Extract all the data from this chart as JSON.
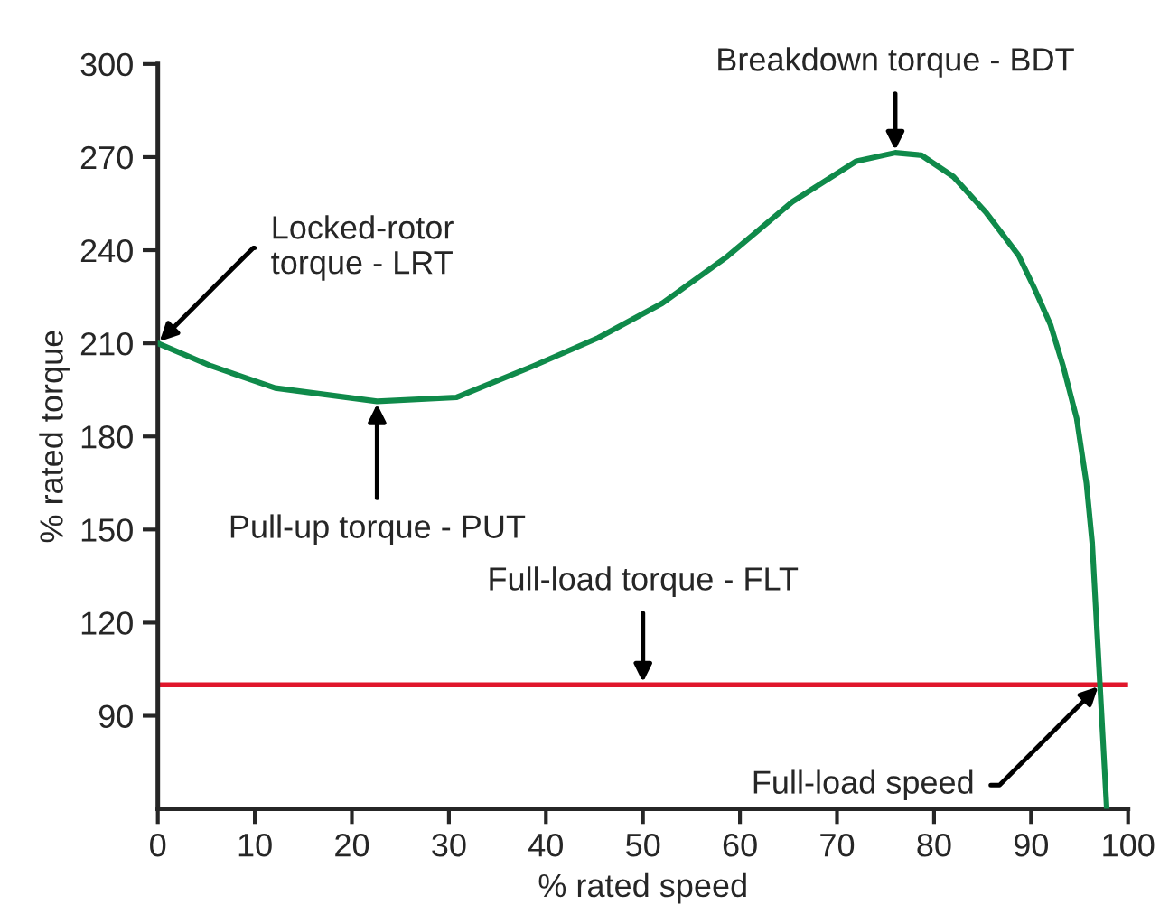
{
  "chart_data": {
    "type": "line",
    "xlabel": "% rated speed",
    "ylabel": "% rated torque",
    "x": [
      0,
      5.5,
      12.1,
      22.6,
      30.8,
      38.7,
      45.4,
      52,
      58.7,
      65.4,
      72,
      76,
      78.7,
      82,
      85.4,
      88.7,
      90.3,
      92,
      93.3,
      94.7,
      95.7,
      96.3,
      97.1,
      97.8
    ],
    "series": [
      {
        "color": "#0f8a4a",
        "values": [
          210,
          202.7,
          195.6,
          191.3,
          192.6,
          202.7,
          211.8,
          222.9,
          238,
          255.6,
          268.7,
          271.4,
          270.6,
          263.7,
          252,
          238.4,
          228,
          216,
          202.7,
          185.8,
          165,
          145.7,
          100,
          60
        ]
      }
    ],
    "xlim": [
      0,
      100
    ],
    "ylim": [
      60,
      300
    ],
    "xticks": [
      0,
      10,
      20,
      30,
      40,
      50,
      60,
      70,
      80,
      90,
      100
    ],
    "yticks": [
      90,
      120,
      150,
      180,
      210,
      240,
      270,
      300
    ],
    "ref_lines": [
      {
        "axis": "y",
        "value": 100,
        "color": "#e0162b"
      }
    ],
    "annotations": [
      {
        "text": "Locked-rotor\ntorque - LRT",
        "x": 0,
        "y": 210
      },
      {
        "text": "Pull-up torque - PUT",
        "x": 22.6,
        "y": 191.3
      },
      {
        "text": "Breakdown torque - BDT",
        "x": 76,
        "y": 271.4
      },
      {
        "text": "Full-load torque - FLT",
        "x": 50,
        "y": 100
      },
      {
        "text": "Full-load speed",
        "x": 97.1,
        "y": 100
      }
    ],
    "grid": false,
    "marker": "none",
    "line_style": "solid"
  }
}
